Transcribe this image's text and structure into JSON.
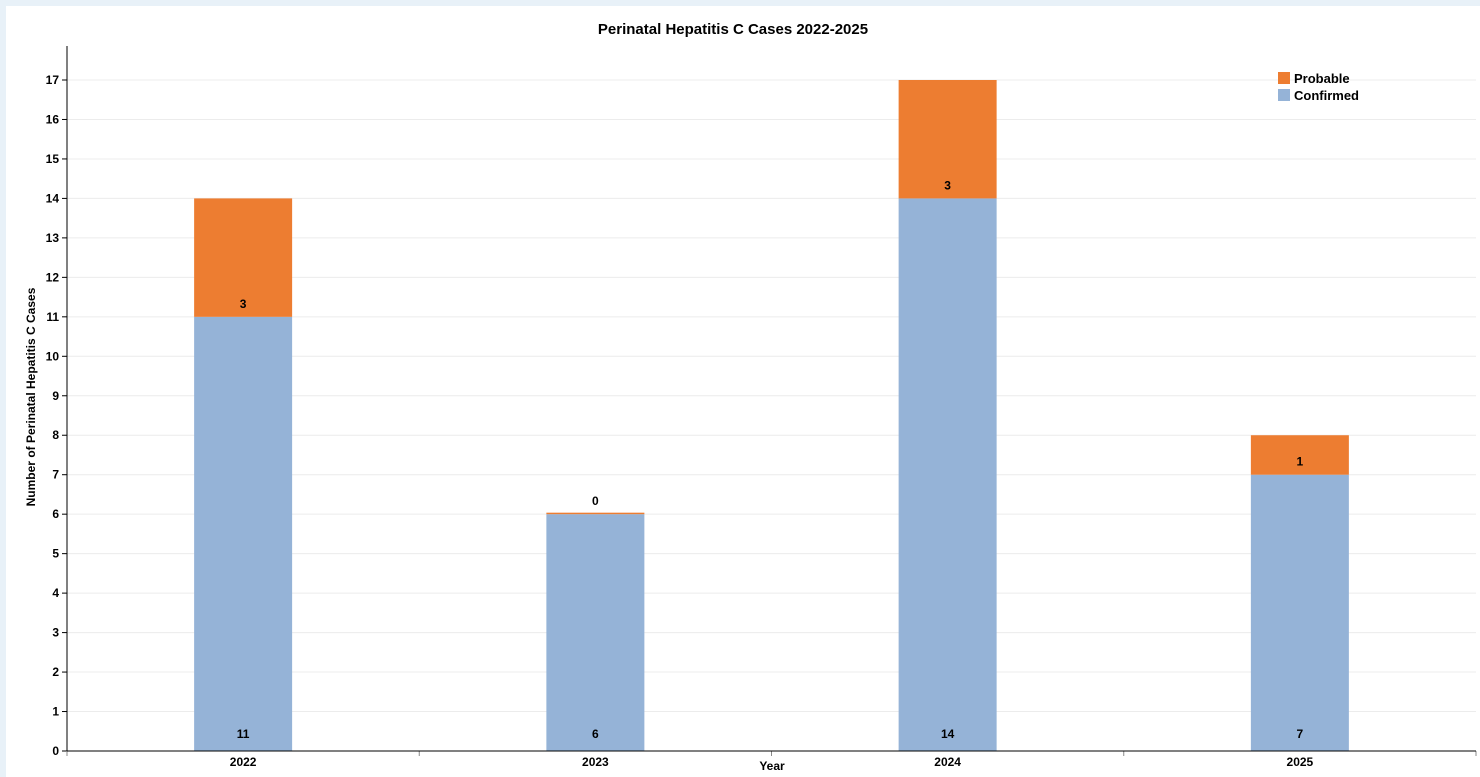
{
  "chart_data": {
    "type": "bar",
    "stacked": true,
    "title": "Perinatal Hepatitis C Cases 2022-2025",
    "xlabel": "Year",
    "ylabel": "Number of Perinatal Hepatitis C Cases",
    "categories": [
      "2022",
      "2023",
      "2024",
      "2025"
    ],
    "series": [
      {
        "name": "Confirmed",
        "values": [
          11,
          6,
          14,
          7
        ],
        "color": "#95b3d7"
      },
      {
        "name": "Probable",
        "values": [
          3,
          0,
          3,
          1
        ],
        "color": "#ed7d31"
      }
    ],
    "ylim": [
      0,
      17
    ],
    "yticks": [
      0,
      1,
      2,
      3,
      4,
      5,
      6,
      7,
      8,
      9,
      10,
      11,
      12,
      13,
      14,
      15,
      16,
      17
    ],
    "grid": true,
    "legend_position": "top-right",
    "legend_order": [
      "Probable",
      "Confirmed"
    ]
  },
  "colors": {
    "background": "#e8f1f8",
    "plot_background": "#ffffff",
    "gridline": "#ececec",
    "axis": "#000000"
  }
}
